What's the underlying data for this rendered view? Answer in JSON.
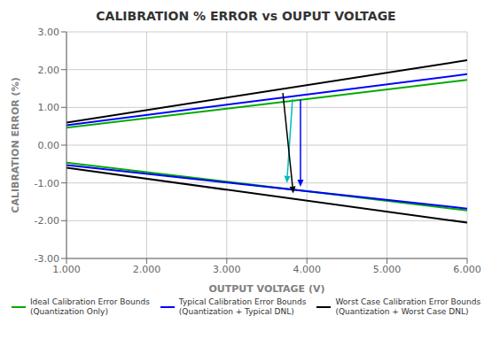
{
  "chart_data": {
    "type": "line",
    "title": "CALIBRATION % ERROR vs OUPUT VOLTAGE",
    "x_label": "OUTPUT VOLTAGE (V)",
    "y_label": "CALIBRATION ERROR (%)",
    "xlim": [
      1.0,
      6.0
    ],
    "ylim": [
      -3.0,
      3.0
    ],
    "xticks": [
      {
        "value": 1.0,
        "label": "1.000"
      },
      {
        "value": 2.0,
        "label": "2.000"
      },
      {
        "value": 3.0,
        "label": "3.000"
      },
      {
        "value": 4.0,
        "label": "4.000"
      },
      {
        "value": 5.0,
        "label": "5.000"
      },
      {
        "value": 6.0,
        "label": "6.000"
      }
    ],
    "yticks": [
      {
        "value": -3.0,
        "label": "-3.00"
      },
      {
        "value": -2.0,
        "label": "-2.00"
      },
      {
        "value": -1.0,
        "label": "-1.00"
      },
      {
        "value": 0.0,
        "label": "0.00"
      },
      {
        "value": 1.0,
        "label": "1.00"
      },
      {
        "value": 2.0,
        "label": "2.00"
      },
      {
        "value": 3.0,
        "label": "3.00"
      }
    ],
    "x": [
      1.0,
      6.0
    ],
    "series": [
      {
        "name": "Ideal Calibration Error Bounds\n(Quantization Only)",
        "color": "#00AA00",
        "upper": [
          0.46,
          1.73
        ],
        "lower": [
          -0.46,
          -1.73
        ]
      },
      {
        "name": "Typical Calibration Error Bounds\n(Quantization + Typical DNL)",
        "color": "#0000FF",
        "upper": [
          0.53,
          1.88
        ],
        "lower": [
          -0.53,
          -1.68
        ]
      },
      {
        "name": "Worst Case Calibration Error Bounds\n(Quantization + Worst Case DNL)",
        "color": "#000000",
        "upper": [
          0.6,
          2.25
        ],
        "lower": [
          -0.6,
          -2.05
        ]
      }
    ],
    "annotations": [
      {
        "type": "arrow",
        "x_start": 3.82,
        "y_start": 1.22,
        "x_end": 3.75,
        "y_end": -1.0,
        "color": "#00BBBB"
      },
      {
        "type": "arrow",
        "x_start": 3.92,
        "y_start": 1.2,
        "x_end": 3.92,
        "y_end": -1.1,
        "color": "#0000FF"
      },
      {
        "type": "arrow",
        "x_start": 3.7,
        "y_start": 1.38,
        "x_end": 3.83,
        "y_end": -1.28,
        "color": "#000000"
      }
    ],
    "grid": true,
    "legend": "bottom"
  }
}
